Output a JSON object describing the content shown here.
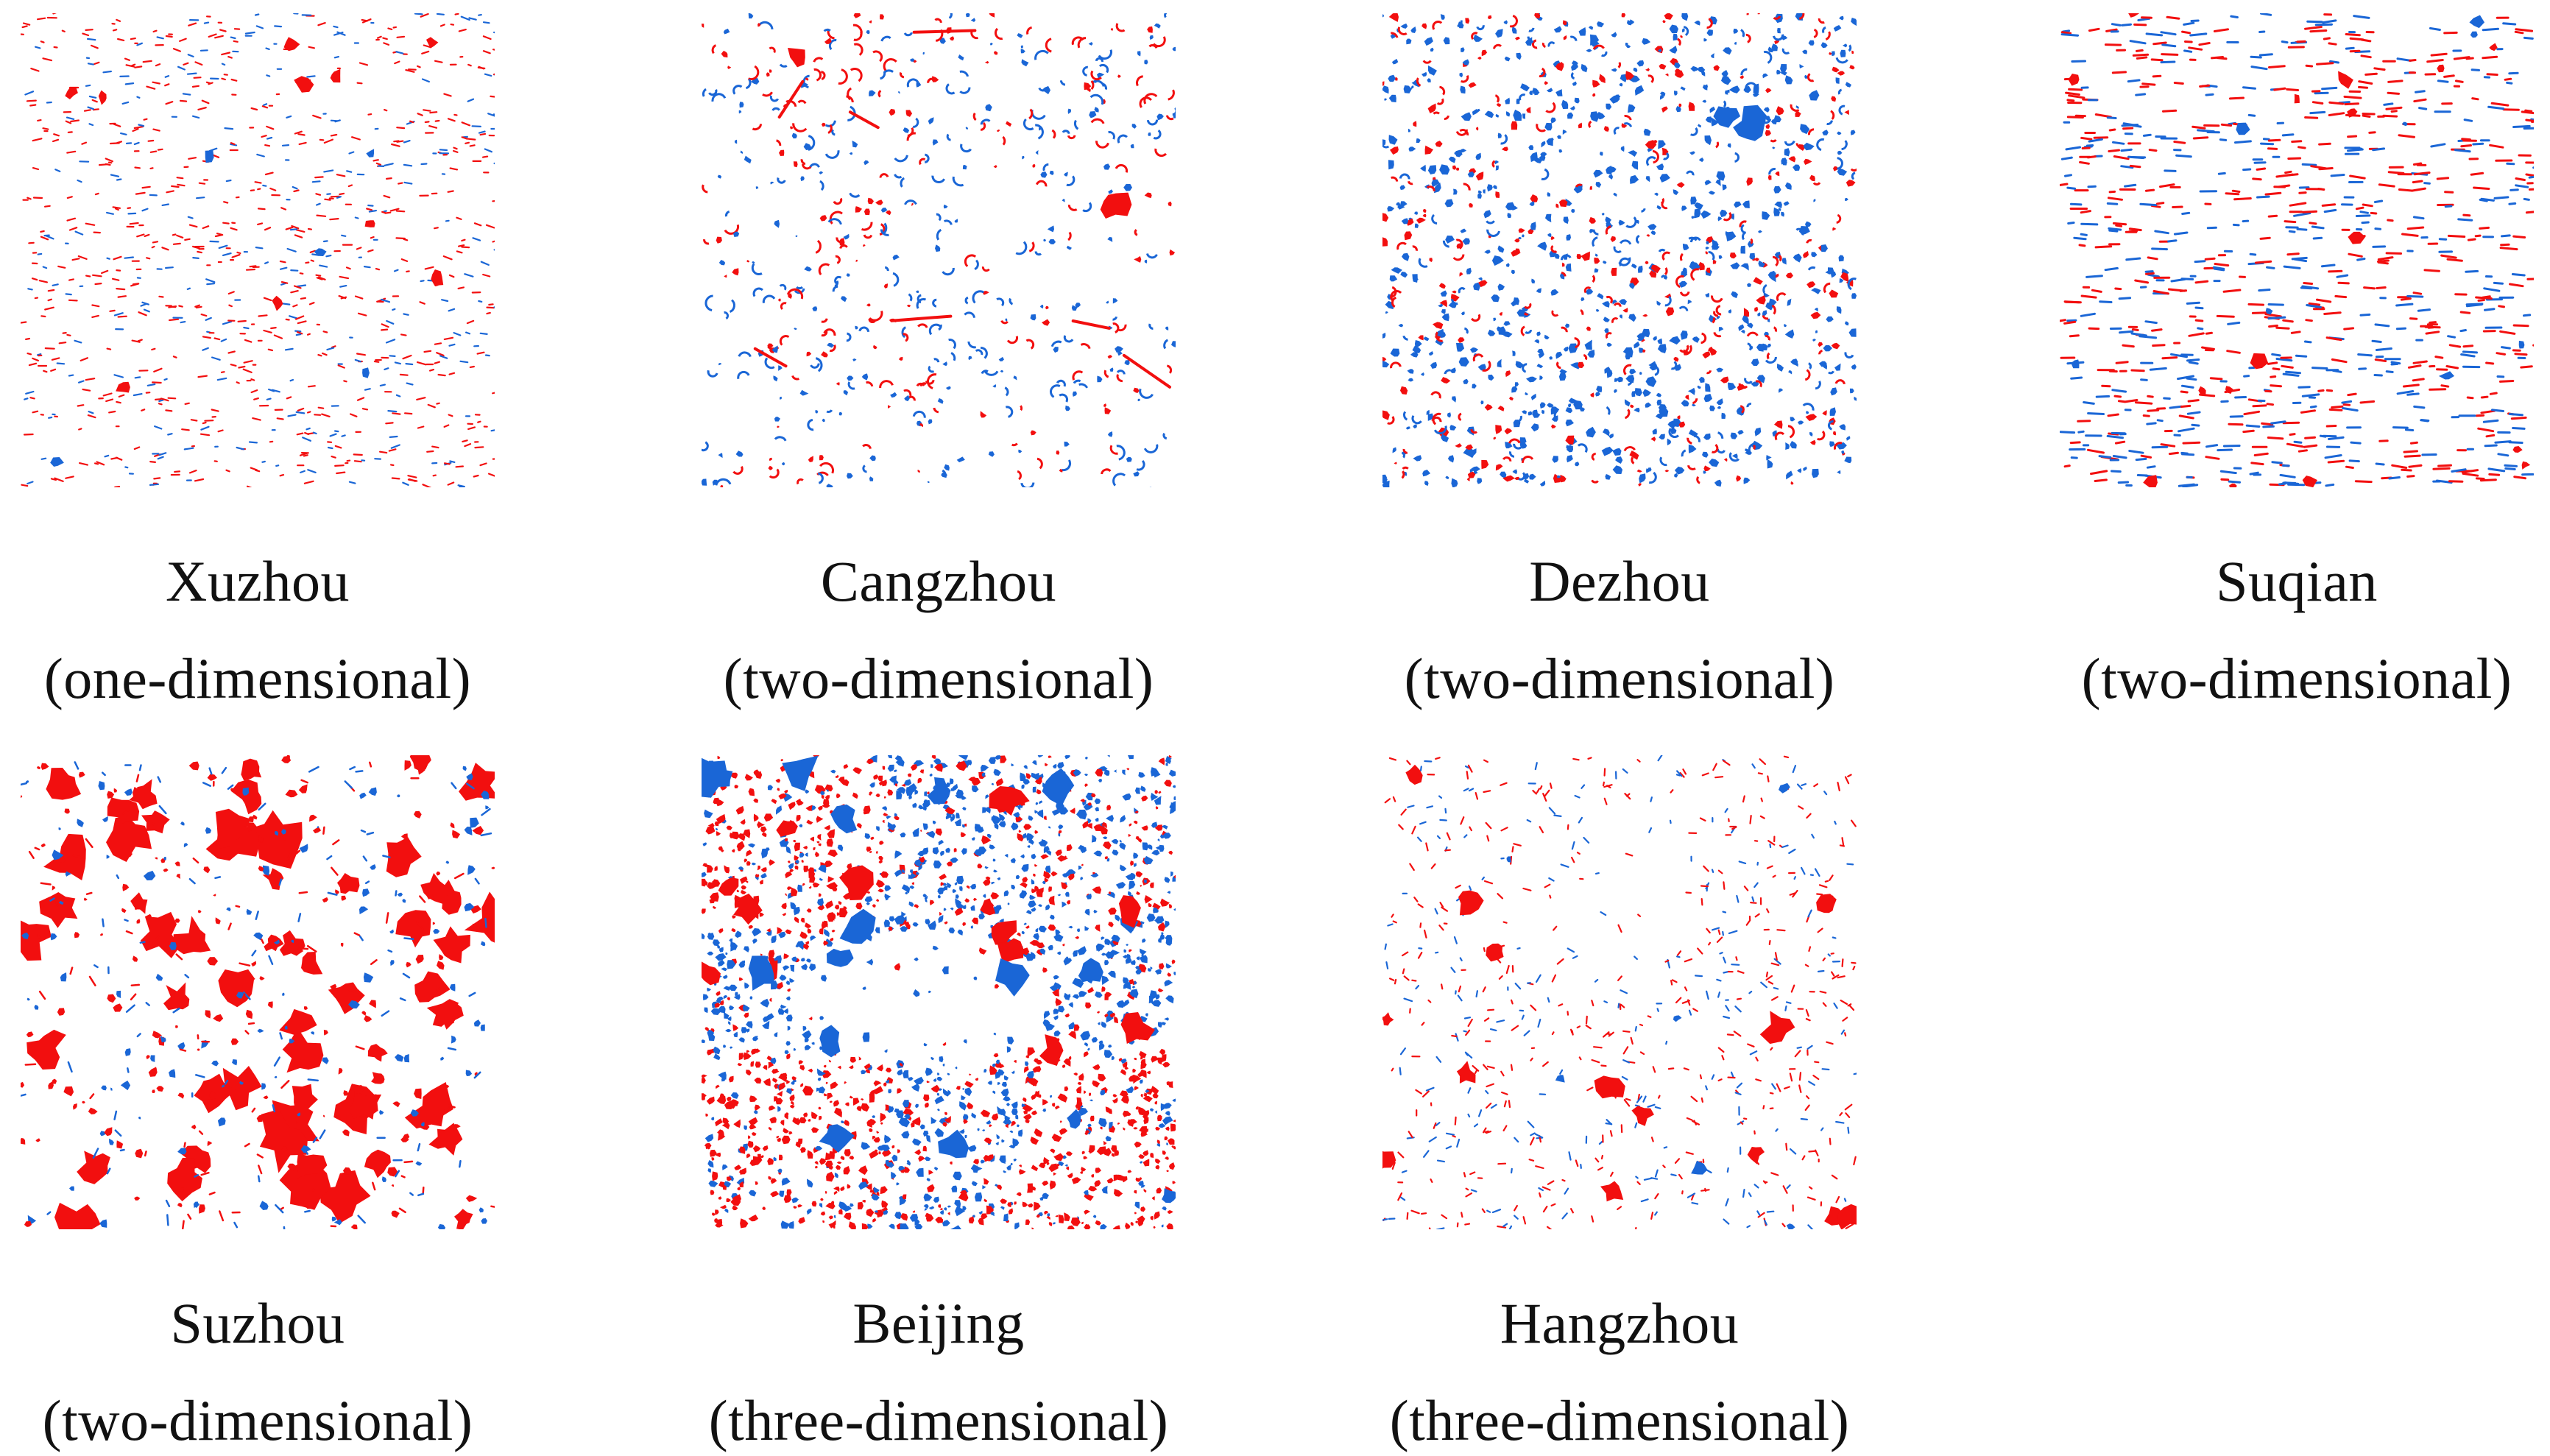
{
  "colors": {
    "increase": "#f20f0f",
    "decrease": "#1a66d6",
    "background": "#ffffff",
    "text": "#111111"
  },
  "panels": [
    {
      "city": "Xuzhou",
      "dimension": "(one-dimensional)",
      "pattern": "fine-scatter-red"
    },
    {
      "city": "Cangzhou",
      "dimension": "(two-dimensional)",
      "pattern": "ring-scatter"
    },
    {
      "city": "Dezhou",
      "dimension": "(two-dimensional)",
      "pattern": "dense-blue-scatter"
    },
    {
      "city": "Suqian",
      "dimension": "(two-dimensional)",
      "pattern": "striped-scatter"
    },
    {
      "city": "Suzhou",
      "dimension": "(two-dimensional)",
      "pattern": "large-red-patches"
    },
    {
      "city": "Beijing",
      "dimension": "(three-dimensional)",
      "pattern": "dense-mixed"
    },
    {
      "city": "Hangzhou",
      "dimension": "(three-dimensional)",
      "pattern": "sparse-mixed"
    }
  ]
}
